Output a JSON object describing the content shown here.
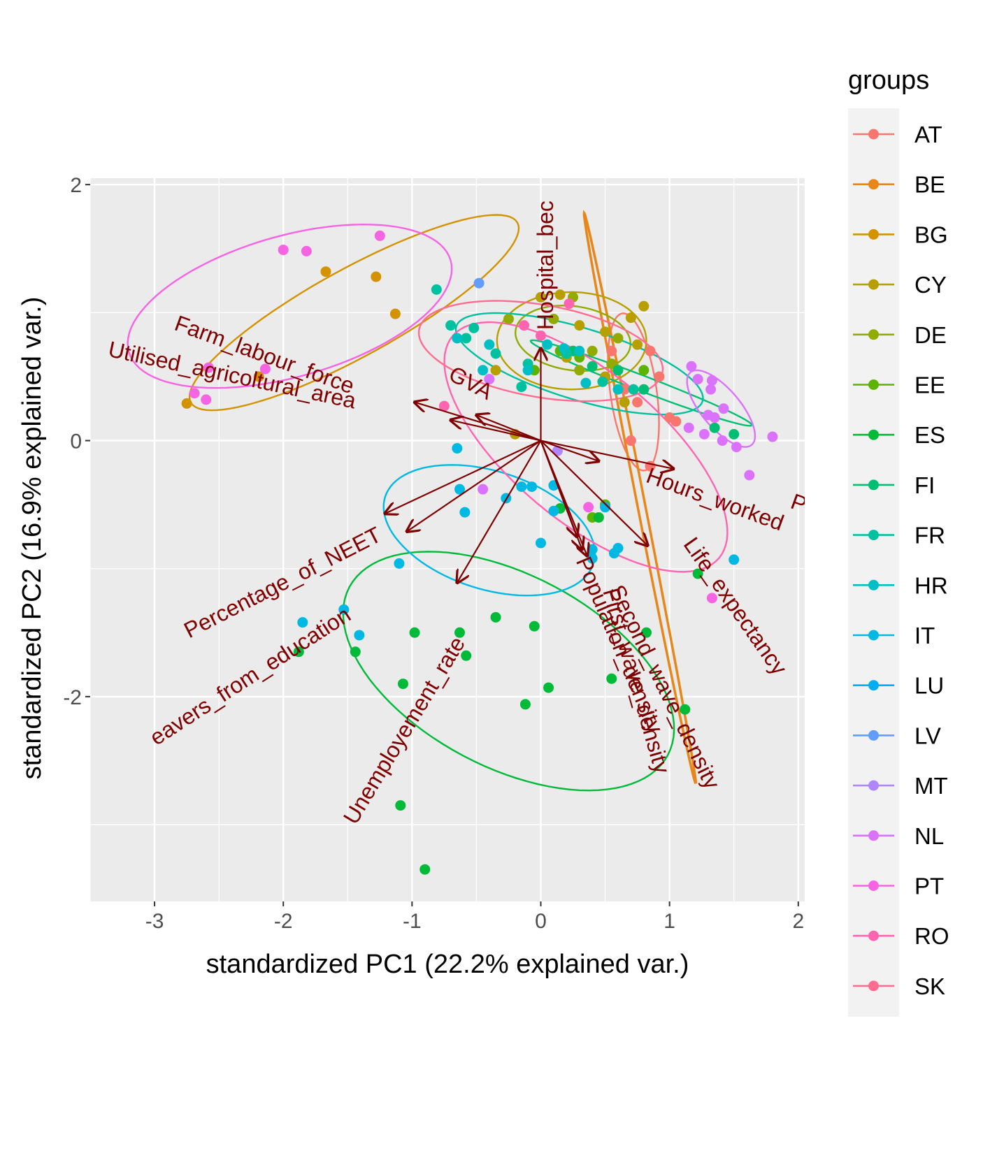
{
  "chart_data": {
    "type": "scatter",
    "title": "",
    "xlabel": "standardized PC1 (22.2% explained var.)",
    "ylabel": "standardized PC2 (16.9% explained var.)",
    "xlim": [
      -3.5,
      2.05
    ],
    "ylim": [
      -3.6,
      2.05
    ],
    "x_ticks": [
      -3,
      -2,
      -1,
      0,
      1,
      2
    ],
    "y_ticks": [
      -2,
      0,
      2
    ],
    "grid": true,
    "legend": {
      "title": "groups",
      "position": "right"
    },
    "series": [
      {
        "name": "AT",
        "color": "#F8766D",
        "points": [
          [
            0.55,
            0.7
          ],
          [
            0.85,
            0.7
          ],
          [
            0.92,
            0.5
          ],
          [
            0.65,
            0.4
          ],
          [
            0.75,
            0.3
          ],
          [
            1.0,
            0.18
          ],
          [
            1.05,
            0.15
          ],
          [
            0.7,
            0.0
          ],
          [
            0.85,
            -0.2
          ]
        ],
        "ellipse": {
          "cx": 0.72,
          "cy": 0.38,
          "rx": 0.62,
          "ry": 0.18,
          "angle": -82
        }
      },
      {
        "name": "BE",
        "color": "#E7861A",
        "points": [],
        "ellipse": {
          "cx": 0.77,
          "cy": -0.45,
          "rx": 2.27,
          "ry": 0.03,
          "angle": -79
        }
      },
      {
        "name": "BG",
        "color": "#D39200",
        "points": [
          [
            -1.67,
            1.32
          ],
          [
            -1.28,
            1.28
          ],
          [
            -1.13,
            0.99
          ],
          [
            -2.19,
            0.5
          ],
          [
            -2.75,
            0.29
          ]
        ],
        "ellipse": {
          "cx": -1.45,
          "cy": 1.0,
          "rx": 1.45,
          "ry": 0.34,
          "angle": 29
        }
      },
      {
        "name": "CY",
        "color": "#B79F00",
        "points": [
          [
            0.0,
            1.12
          ],
          [
            0.15,
            1.14
          ],
          [
            0.8,
            1.05
          ],
          [
            0.3,
            0.9
          ],
          [
            0.5,
            0.85
          ],
          [
            0.7,
            0.96
          ],
          [
            0.75,
            0.75
          ],
          [
            0.25,
            0.7
          ],
          [
            0.2,
            0.65
          ],
          [
            -0.35,
            0.55
          ],
          [
            0.5,
            0.5
          ],
          [
            0.65,
            0.3
          ],
          [
            -0.2,
            0.05
          ]
        ],
        "ellipse": {
          "cx": 0.24,
          "cy": 0.78,
          "rx": 0.58,
          "ry": 0.38,
          "angle": 0
        }
      },
      {
        "name": "DE",
        "color": "#93AA00",
        "points": [
          [
            -0.25,
            0.95
          ],
          [
            0.1,
            0.95
          ],
          [
            0.25,
            1.12
          ],
          [
            0.4,
            0.7
          ],
          [
            0.55,
            0.6
          ],
          [
            0.6,
            0.8
          ],
          [
            0.3,
            0.55
          ]
        ],
        "ellipse": {
          "cx": 0.25,
          "cy": 0.8,
          "rx": 0.45,
          "ry": 0.25,
          "angle": -8
        }
      },
      {
        "name": "EE",
        "color": "#5EB300",
        "points": [
          [
            0.15,
            0.7
          ],
          [
            0.3,
            0.65
          ],
          [
            0.6,
            0.55
          ],
          [
            -0.05,
            0.55
          ],
          [
            0.8,
            0.55
          ],
          [
            0.5,
            -0.5
          ],
          [
            0.4,
            -0.6
          ]
        ],
        "ellipse": null
      },
      {
        "name": "ES",
        "color": "#00BA38",
        "points": [
          [
            -1.88,
            -1.65
          ],
          [
            -1.44,
            -1.65
          ],
          [
            -0.98,
            -1.5
          ],
          [
            -0.63,
            -1.5
          ],
          [
            -0.35,
            -1.38
          ],
          [
            -0.05,
            -1.45
          ],
          [
            -0.58,
            -1.68
          ],
          [
            -1.07,
            -1.9
          ],
          [
            -0.12,
            -2.06
          ],
          [
            0.06,
            -1.93
          ],
          [
            0.55,
            -1.86
          ],
          [
            0.82,
            -1.5
          ],
          [
            1.12,
            -2.1
          ],
          [
            1.22,
            -1.04
          ],
          [
            -1.09,
            -2.85
          ],
          [
            -0.9,
            -3.35
          ],
          [
            0.15,
            -0.53
          ],
          [
            0.45,
            -0.6
          ]
        ],
        "ellipse": {
          "cx": -0.25,
          "cy": -1.8,
          "rx": 1.4,
          "ry": 0.75,
          "angle": -28
        }
      },
      {
        "name": "FI",
        "color": "#00BF74",
        "points": [
          [
            0.6,
            0.55
          ],
          [
            0.8,
            0.4
          ],
          [
            1.35,
            0.1
          ],
          [
            1.5,
            0.05
          ],
          [
            0.25,
            0.7
          ],
          [
            0.4,
            0.58
          ]
        ],
        "ellipse": {
          "cx": 0.78,
          "cy": 0.45,
          "rx": 0.92,
          "ry": 0.06,
          "angle": -21
        }
      },
      {
        "name": "FR",
        "color": "#00C19F",
        "points": [
          [
            -0.81,
            1.18
          ],
          [
            -0.7,
            0.9
          ],
          [
            -0.52,
            0.88
          ],
          [
            -0.58,
            0.8
          ],
          [
            -0.35,
            0.68
          ],
          [
            -0.1,
            0.6
          ],
          [
            0.2,
            0.68
          ],
          [
            0.48,
            0.46
          ],
          [
            0.72,
            0.4
          ],
          [
            -0.15,
            0.42
          ]
        ],
        "ellipse": {
          "cx": 0.3,
          "cy": 0.6,
          "rx": 1.0,
          "ry": 0.28,
          "angle": -17
        }
      },
      {
        "name": "HR",
        "color": "#00BFC4",
        "points": [
          [
            -0.65,
            0.8
          ],
          [
            -0.4,
            0.75
          ],
          [
            0.05,
            0.75
          ],
          [
            0.18,
            0.72
          ],
          [
            0.3,
            0.7
          ],
          [
            -0.1,
            0.55
          ],
          [
            0.35,
            0.45
          ],
          [
            0.6,
            0.4
          ],
          [
            -0.45,
            0.55
          ]
        ],
        "ellipse": null
      },
      {
        "name": "IT",
        "color": "#00B9E3",
        "points": [
          [
            -1.85,
            -1.42
          ],
          [
            -1.53,
            -1.32
          ],
          [
            -1.41,
            -1.52
          ],
          [
            -1.1,
            -0.96
          ],
          [
            -0.63,
            -0.38
          ],
          [
            -0.59,
            -0.56
          ],
          [
            -0.27,
            -0.45
          ],
          [
            -0.15,
            -0.36
          ],
          [
            -0.07,
            -0.36
          ],
          [
            0.0,
            -0.8
          ],
          [
            0.1,
            -0.35
          ],
          [
            0.1,
            -0.55
          ],
          [
            0.4,
            -0.85
          ],
          [
            0.4,
            -0.92
          ],
          [
            0.5,
            -0.52
          ],
          [
            0.57,
            -0.88
          ],
          [
            0.6,
            -0.84
          ],
          [
            -0.65,
            -0.06
          ],
          [
            1.5,
            -0.93
          ]
        ],
        "ellipse": {
          "cx": -0.4,
          "cy": -0.7,
          "rx": 0.85,
          "ry": 0.46,
          "angle": -18
        }
      },
      {
        "name": "LU",
        "color": "#00ADFA",
        "points": [],
        "ellipse": null
      },
      {
        "name": "LV",
        "color": "#619CFF",
        "points": [
          [
            -0.48,
            1.23
          ]
        ],
        "ellipse": null
      },
      {
        "name": "MT",
        "color": "#AE87FF",
        "points": [
          [
            0.13,
            -0.08
          ]
        ],
        "ellipse": null
      },
      {
        "name": "NL",
        "color": "#DB72FB",
        "points": [
          [
            1.17,
            0.58
          ],
          [
            1.22,
            0.48
          ],
          [
            1.33,
            0.47
          ],
          [
            1.32,
            0.4
          ],
          [
            1.42,
            0.25
          ],
          [
            1.35,
            0.18
          ],
          [
            1.3,
            0.2
          ],
          [
            1.15,
            0.1
          ],
          [
            1.27,
            0.05
          ],
          [
            1.41,
            0.0
          ],
          [
            1.52,
            -0.05
          ],
          [
            1.62,
            -0.27
          ],
          [
            1.8,
            0.03
          ],
          [
            -0.45,
            -0.38
          ],
          [
            -0.4,
            0.48
          ]
        ],
        "ellipse": {
          "cx": 1.4,
          "cy": 0.25,
          "rx": 0.37,
          "ry": 0.15,
          "angle": -50
        }
      },
      {
        "name": "PT",
        "color": "#F564E3",
        "points": [
          [
            -2.0,
            1.49
          ],
          [
            -1.82,
            1.48
          ],
          [
            -1.25,
            1.6
          ],
          [
            -2.58,
            0.57
          ],
          [
            -2.14,
            0.56
          ],
          [
            -2.69,
            0.37
          ],
          [
            -2.6,
            0.32
          ],
          [
            0.37,
            -0.52
          ],
          [
            1.33,
            -1.23
          ]
        ],
        "ellipse": {
          "cx": -1.95,
          "cy": 1.05,
          "rx": 1.3,
          "ry": 0.55,
          "angle": 16
        }
      },
      {
        "name": "RO",
        "color": "#FF64B0",
        "points": [
          [
            -0.13,
            0.9
          ],
          [
            0.0,
            0.82
          ],
          [
            0.22,
            1.07
          ],
          [
            -0.75,
            0.27
          ]
        ],
        "ellipse": {
          "cx": 0.35,
          "cy": -0.05,
          "rx": 1.35,
          "ry": 0.58,
          "angle": -40
        }
      },
      {
        "name": "SK",
        "color": "#FF6C91",
        "points": [],
        "ellipse": {
          "cx": 0.0,
          "cy": 0.7,
          "rx": 0.96,
          "ry": 0.36,
          "angle": -10
        }
      }
    ],
    "loadings": {
      "color": "#7F0000",
      "arrows": [
        {
          "name": "Hospital_beds",
          "end": [
            0.0,
            0.72
          ],
          "label_pos": [
            0.05,
            1.37
          ],
          "label_angle": -90
        },
        {
          "name": "GVA",
          "end": [
            -0.98,
            0.3
          ],
          "label_pos": [
            -0.55,
            0.44
          ],
          "label_angle": 28
        },
        {
          "name": "Farm_labour_force",
          "end": [
            -0.7,
            0.16
          ],
          "label_pos": [
            -2.15,
            0.66
          ],
          "label_angle": 20
        },
        {
          "name": "Utilised_agricultural_area",
          "end": [
            -0.5,
            0.2
          ],
          "label_pos": [
            -2.4,
            0.5
          ],
          "label_angle": 12
        },
        {
          "name": "Hours_worked",
          "end": [
            1.03,
            -0.22
          ],
          "label_pos": [
            1.35,
            -0.47
          ],
          "label_angle": 20
        },
        {
          "name": "P",
          "end": [
            0.45,
            -0.16
          ],
          "label_pos": [
            2.0,
            -0.5
          ],
          "label_angle": 20
        },
        {
          "name": "Percentage_of_NEET",
          "end": [
            -1.21,
            -0.57
          ],
          "label_pos": [
            -2.0,
            -1.12
          ],
          "label_angle": -27
        },
        {
          "name": "Early_leavers_from_education",
          "end": [
            -1.04,
            -0.71
          ],
          "label_pos": [
            -2.25,
            -1.85
          ],
          "label_angle": -33
        },
        {
          "name": "Unemployement_rate",
          "end": [
            -0.65,
            -1.11
          ],
          "label_pos": [
            -1.05,
            -2.27
          ],
          "label_angle": -59
        },
        {
          "name": "Population_density",
          "end": [
            0.36,
            -0.9
          ],
          "label_pos": [
            0.6,
            -1.6
          ],
          "label_angle": 67
        },
        {
          "name": "First_wave_density",
          "end": [
            0.32,
            -0.85
          ],
          "label_pos": [
            0.73,
            -1.88
          ],
          "label_angle": 74
        },
        {
          "name": "Second_wave_density",
          "end": [
            0.28,
            -0.75
          ],
          "label_pos": [
            0.95,
            -1.93
          ],
          "label_angle": 64
        },
        {
          "name": "Life_expectancy",
          "end": [
            0.83,
            -0.82
          ],
          "label_pos": [
            1.5,
            -1.3
          ],
          "label_angle": 55
        }
      ],
      "visible_labels": [
        {
          "text": "Hospital_bec"
        },
        {
          "text": "GVA"
        },
        {
          "text": "Farm_labour_force"
        },
        {
          "text": "Utilised_agricoltural_area"
        },
        {
          "text": "Hours_worked"
        },
        {
          "text": "P"
        },
        {
          "text": "Percentage_of_NEET"
        },
        {
          "text": "eavers_from_education"
        },
        {
          "text": "Unemployement_rate"
        },
        {
          "text": "Population_density"
        },
        {
          "text": "First_wave_density"
        },
        {
          "text": "Second_wave_density"
        },
        {
          "text": "Life_expectancy"
        }
      ]
    }
  }
}
